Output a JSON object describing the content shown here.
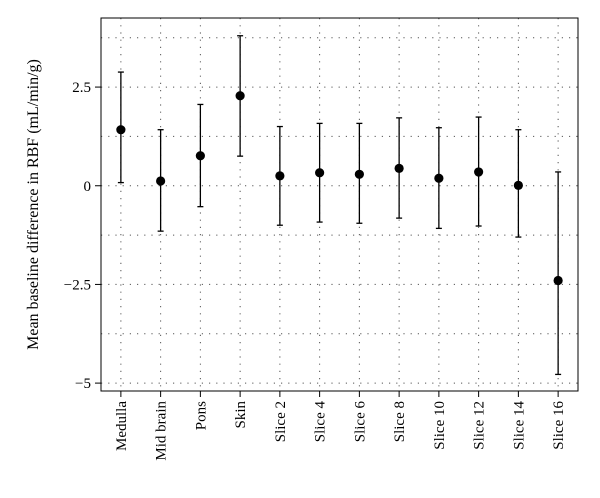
{
  "chart_data": {
    "type": "scatter",
    "title": "",
    "xlabel": "",
    "ylabel": "Mean baseline difference in RBF (mL/min/g)",
    "categories": [
      "Medulla",
      "Mid brain",
      "Pons",
      "Skin",
      "Slice 2",
      "Slice 4",
      "Slice 6",
      "Slice 8",
      "Slice 10",
      "Slice 12",
      "Slice 14",
      "Slice 16"
    ],
    "series": [
      {
        "values": [
          1.42,
          0.12,
          0.76,
          2.28,
          0.25,
          0.33,
          0.29,
          0.44,
          0.19,
          0.35,
          0.01,
          -2.4
        ],
        "lower": [
          0.08,
          -1.15,
          -0.53,
          0.75,
          -1.0,
          -0.92,
          -0.95,
          -0.82,
          -1.08,
          -1.02,
          -1.3,
          -4.78
        ],
        "upper": [
          2.88,
          1.42,
          2.06,
          3.8,
          1.5,
          1.58,
          1.58,
          1.72,
          1.47,
          1.74,
          1.42,
          0.35
        ]
      }
    ],
    "yticks": [
      -5,
      -2.5,
      0,
      2.5
    ],
    "ytick_labels": [
      "−5",
      "−2.5",
      "0",
      "2.5"
    ],
    "ylim": [
      -5.2,
      4.25
    ],
    "grid": true,
    "grid_style": "dotted",
    "legend": "none"
  }
}
